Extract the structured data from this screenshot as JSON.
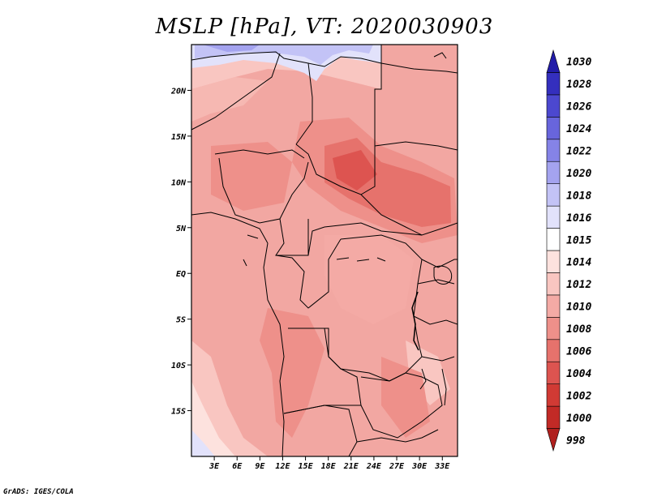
{
  "title": "MSLP [hPa], VT: 2020030903",
  "footer": "GrADS: IGES/COLA",
  "map": {
    "lon_range": [
      0,
      35
    ],
    "lat_range": [
      -20,
      25
    ],
    "lon_ticks": [
      {
        "value": 3,
        "label": "3E"
      },
      {
        "value": 6,
        "label": "6E"
      },
      {
        "value": 9,
        "label": "9E"
      },
      {
        "value": 12,
        "label": "12E"
      },
      {
        "value": 15,
        "label": "15E"
      },
      {
        "value": 18,
        "label": "18E"
      },
      {
        "value": 21,
        "label": "21E"
      },
      {
        "value": 24,
        "label": "24E"
      },
      {
        "value": 27,
        "label": "27E"
      },
      {
        "value": 30,
        "label": "30E"
      },
      {
        "value": 33,
        "label": "33E"
      }
    ],
    "lat_ticks": [
      {
        "value": 20,
        "label": "20N"
      },
      {
        "value": 15,
        "label": "15N"
      },
      {
        "value": 10,
        "label": "10N"
      },
      {
        "value": 5,
        "label": "5N"
      },
      {
        "value": 0,
        "label": "EQ"
      },
      {
        "value": -5,
        "label": "5S"
      },
      {
        "value": -10,
        "label": "10S"
      },
      {
        "value": -15,
        "label": "15S"
      }
    ]
  },
  "colorbar": {
    "levels": [
      {
        "label": "998",
        "color": "#b0201e"
      },
      {
        "label": "1000",
        "color": "#c22a26"
      },
      {
        "label": "1002",
        "color": "#d13a34"
      },
      {
        "label": "1004",
        "color": "#dd5450"
      },
      {
        "label": "1006",
        "color": "#e6726c"
      },
      {
        "label": "1008",
        "color": "#ee908a"
      },
      {
        "label": "1010",
        "color": "#f4aaa5"
      },
      {
        "label": "1012",
        "color": "#f9c6c1"
      },
      {
        "label": "1014",
        "color": "#fde2de"
      },
      {
        "label": "1015",
        "color": "#ffffff"
      },
      {
        "label": "1016",
        "color": "#e2e2fb"
      },
      {
        "label": "1018",
        "color": "#c3c3f6"
      },
      {
        "label": "1020",
        "color": "#a4a3ef"
      },
      {
        "label": "1022",
        "color": "#8583e7"
      },
      {
        "label": "1024",
        "color": "#6865dc"
      },
      {
        "label": "1026",
        "color": "#4c48cf"
      },
      {
        "label": "1028",
        "color": "#342fbe"
      },
      {
        "label": "1030",
        "color": "#221ca8"
      }
    ]
  }
}
